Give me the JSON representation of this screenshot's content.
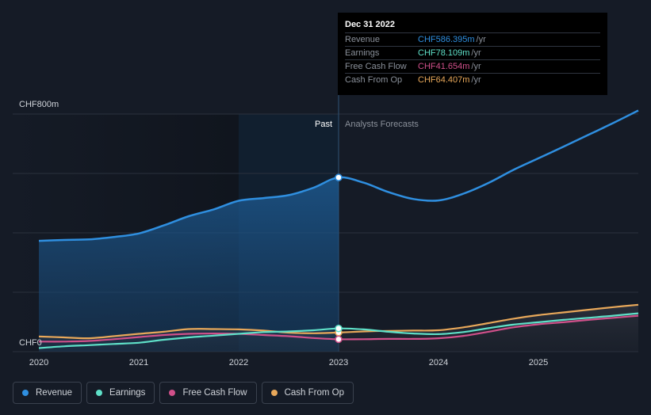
{
  "chart_data": {
    "type": "line",
    "y_top_label": "CHF800m",
    "y_bottom_label": "CHF0",
    "ylim": [
      0,
      800
    ],
    "xlim": [
      2019.99,
      2026.0
    ],
    "x_ticks": [
      {
        "value": 2020,
        "label": "2020"
      },
      {
        "value": 2021,
        "label": "2021"
      },
      {
        "value": 2022,
        "label": "2022"
      },
      {
        "value": 2023,
        "label": "2023"
      },
      {
        "value": 2024,
        "label": "2024"
      },
      {
        "value": 2025,
        "label": "2025"
      }
    ],
    "y_gridlines": [
      0,
      200,
      400,
      600,
      800
    ],
    "divider_x": 2023.0,
    "highlight_start_x": 2022.0,
    "past_label": "Past",
    "forecast_label": "Analysts Forecasts",
    "series": [
      {
        "name": "Revenue",
        "key": "revenue",
        "color": "#2f8fe0",
        "area": true,
        "points": [
          [
            2020.0,
            373
          ],
          [
            2020.25,
            376
          ],
          [
            2020.5,
            378
          ],
          [
            2020.75,
            386
          ],
          [
            2021.0,
            398
          ],
          [
            2021.25,
            425
          ],
          [
            2021.5,
            456
          ],
          [
            2021.75,
            479
          ],
          [
            2022.0,
            508
          ],
          [
            2022.25,
            517
          ],
          [
            2022.5,
            527
          ],
          [
            2022.75,
            552
          ],
          [
            2023.0,
            586.4
          ],
          [
            2023.25,
            569
          ],
          [
            2023.5,
            537
          ],
          [
            2023.75,
            514
          ],
          [
            2024.0,
            509
          ],
          [
            2024.25,
            532
          ],
          [
            2024.5,
            568
          ],
          [
            2024.75,
            612
          ],
          [
            2025.0,
            651
          ],
          [
            2025.25,
            690
          ],
          [
            2025.5,
            730
          ],
          [
            2025.75,
            770
          ],
          [
            2026.0,
            812
          ]
        ]
      },
      {
        "name": "Earnings",
        "key": "earnings",
        "color": "#5fe0c8",
        "points": [
          [
            2020.0,
            12
          ],
          [
            2020.25,
            18
          ],
          [
            2020.5,
            22
          ],
          [
            2020.75,
            26
          ],
          [
            2021.0,
            30
          ],
          [
            2021.25,
            40
          ],
          [
            2021.5,
            48
          ],
          [
            2021.75,
            54
          ],
          [
            2022.0,
            60
          ],
          [
            2022.25,
            66
          ],
          [
            2022.5,
            68
          ],
          [
            2022.75,
            72
          ],
          [
            2023.0,
            78.1
          ],
          [
            2023.25,
            75
          ],
          [
            2023.5,
            67
          ],
          [
            2023.75,
            61
          ],
          [
            2024.0,
            59
          ],
          [
            2024.25,
            66
          ],
          [
            2024.5,
            79
          ],
          [
            2024.75,
            91
          ],
          [
            2025.0,
            99
          ],
          [
            2025.25,
            107
          ],
          [
            2025.5,
            114
          ],
          [
            2025.75,
            121
          ],
          [
            2026.0,
            129
          ]
        ]
      },
      {
        "name": "Free Cash Flow",
        "key": "fcf",
        "color": "#d0508a",
        "points": [
          [
            2020.0,
            34
          ],
          [
            2020.25,
            34
          ],
          [
            2020.5,
            36
          ],
          [
            2020.75,
            42
          ],
          [
            2021.0,
            49
          ],
          [
            2021.25,
            56
          ],
          [
            2021.5,
            60
          ],
          [
            2021.75,
            61
          ],
          [
            2022.0,
            60
          ],
          [
            2022.25,
            56
          ],
          [
            2022.5,
            52
          ],
          [
            2022.75,
            46
          ],
          [
            2023.0,
            41.7
          ],
          [
            2023.25,
            42
          ],
          [
            2023.5,
            43
          ],
          [
            2023.75,
            43
          ],
          [
            2024.0,
            45
          ],
          [
            2024.25,
            53
          ],
          [
            2024.5,
            67
          ],
          [
            2024.75,
            82
          ],
          [
            2025.0,
            92
          ],
          [
            2025.25,
            99
          ],
          [
            2025.5,
            107
          ],
          [
            2025.75,
            114
          ],
          [
            2026.0,
            121
          ]
        ]
      },
      {
        "name": "Cash From Op",
        "key": "cfo",
        "color": "#e8a85a",
        "points": [
          [
            2020.0,
            51
          ],
          [
            2020.25,
            48
          ],
          [
            2020.5,
            45
          ],
          [
            2020.75,
            52
          ],
          [
            2021.0,
            60
          ],
          [
            2021.25,
            67
          ],
          [
            2021.5,
            76
          ],
          [
            2021.75,
            76
          ],
          [
            2022.0,
            75
          ],
          [
            2022.25,
            71
          ],
          [
            2022.5,
            64
          ],
          [
            2022.75,
            62
          ],
          [
            2023.0,
            64.4
          ],
          [
            2023.25,
            68
          ],
          [
            2023.5,
            70
          ],
          [
            2023.75,
            71
          ],
          [
            2024.0,
            72
          ],
          [
            2024.25,
            82
          ],
          [
            2024.5,
            96
          ],
          [
            2024.75,
            111
          ],
          [
            2025.0,
            123
          ],
          [
            2025.25,
            132
          ],
          [
            2025.5,
            141
          ],
          [
            2025.75,
            150
          ],
          [
            2026.0,
            158
          ]
        ]
      }
    ]
  },
  "tooltip": {
    "date": "Dec 31 2022",
    "rows": [
      {
        "label": "Revenue",
        "value": "CHF586.395m",
        "unit": "/yr",
        "color": "#2f8fe0"
      },
      {
        "label": "Earnings",
        "value": "CHF78.109m",
        "unit": "/yr",
        "color": "#5fe0c8"
      },
      {
        "label": "Free Cash Flow",
        "value": "CHF41.654m",
        "unit": "/yr",
        "color": "#d0508a"
      },
      {
        "label": "Cash From Op",
        "value": "CHF64.407m",
        "unit": "/yr",
        "color": "#e8a85a"
      }
    ]
  },
  "legend": [
    {
      "label": "Revenue",
      "color": "#2f8fe0"
    },
    {
      "label": "Earnings",
      "color": "#5fe0c8"
    },
    {
      "label": "Free Cash Flow",
      "color": "#d0508a"
    },
    {
      "label": "Cash From Op",
      "color": "#e8a85a"
    }
  ]
}
